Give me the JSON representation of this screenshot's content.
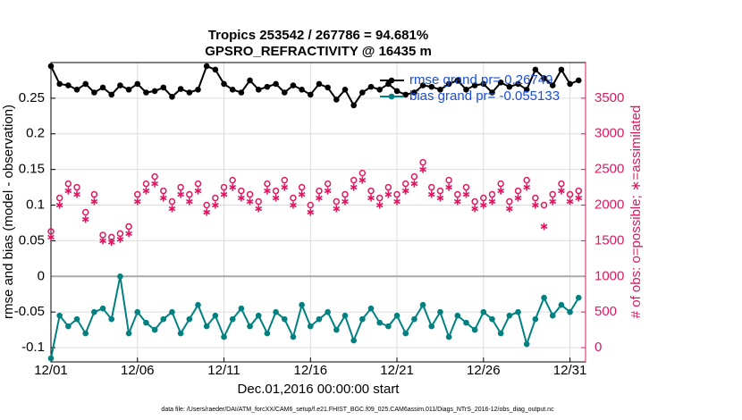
{
  "chart_data": {
    "type": "line",
    "title": "Tropics 253542 / 267786 = 94.681%",
    "subtitle": "GPSRO_REFRACTIVITY @ 16435 m",
    "xlabel": "Dec.01,2016 00:00:00 start",
    "ylabel": "rmse and bias (model - observation)",
    "y2label": "# of obs: o=possible; ∗=assimilated",
    "footnote": "data file: /Users/raeder/DAI/ATM_forcXX/CAM6_setup/f.e21.FHIST_BGC.f09_025.CAM6assim.011/Diags_NTrS_2016-12/obs_diag_output.nc",
    "x": [
      1,
      1.5,
      2,
      2.5,
      3,
      3.5,
      4,
      4.5,
      5,
      5.5,
      6,
      6.5,
      7,
      7.5,
      8,
      8.5,
      9,
      9.5,
      10,
      10.5,
      11,
      11.5,
      12,
      12.5,
      13,
      13.5,
      14,
      14.5,
      15,
      15.5,
      16,
      16.5,
      17,
      17.5,
      18,
      18.5,
      19,
      19.5,
      20,
      20.5,
      21,
      21.5,
      22,
      22.5,
      23,
      23.5,
      24,
      24.5,
      25,
      25.5,
      26,
      26.5,
      27,
      27.5,
      28,
      28.5,
      29,
      29.5,
      30,
      30.5,
      31,
      31.5
    ],
    "xlim": [
      1,
      31.9
    ],
    "xticks": [
      {
        "value": 1,
        "label": "12/01"
      },
      {
        "value": 6,
        "label": "12/06"
      },
      {
        "value": 11,
        "label": "12/11"
      },
      {
        "value": 16,
        "label": "12/16"
      },
      {
        "value": 21,
        "label": "12/21"
      },
      {
        "value": 26,
        "label": "12/26"
      },
      {
        "value": 31,
        "label": "12/31"
      }
    ],
    "ylim": [
      -0.12,
      0.3
    ],
    "yticks": [
      -0.1,
      -0.05,
      0,
      0.05,
      0.1,
      0.15,
      0.2,
      0.25
    ],
    "y2lim": [
      -200,
      4000
    ],
    "y2ticks": [
      0,
      500,
      1000,
      1500,
      2000,
      2500,
      3000,
      3500
    ],
    "grid": true,
    "series": [
      {
        "name": "rmse grand pr= 0.26749",
        "color": "#000000",
        "marker": "dot",
        "values": [
          0.295,
          0.27,
          0.268,
          0.262,
          0.27,
          0.258,
          0.265,
          0.255,
          0.268,
          0.262,
          0.27,
          0.258,
          0.26,
          0.265,
          0.252,
          0.263,
          0.258,
          0.262,
          0.295,
          0.29,
          0.27,
          0.262,
          0.258,
          0.275,
          0.262,
          0.266,
          0.27,
          0.258,
          0.268,
          0.262,
          0.255,
          0.27,
          0.265,
          0.248,
          0.262,
          0.24,
          0.258,
          0.266,
          0.262,
          0.27,
          0.26,
          0.255,
          0.258,
          0.268,
          0.266,
          0.262,
          0.27,
          0.275,
          0.262,
          0.268,
          0.27,
          0.258,
          0.272,
          0.266,
          0.27,
          0.262,
          0.29,
          0.278,
          0.268,
          0.29,
          0.27,
          0.275
        ]
      },
      {
        "name": "bias grand pr= -0.055133",
        "color": "#008080",
        "marker": "dot",
        "values": [
          -0.115,
          -0.055,
          -0.07,
          -0.06,
          -0.08,
          -0.05,
          -0.045,
          -0.06,
          0,
          -0.08,
          -0.05,
          -0.065,
          -0.075,
          -0.06,
          -0.05,
          -0.08,
          -0.06,
          -0.04,
          -0.07,
          -0.055,
          -0.085,
          -0.06,
          -0.045,
          -0.07,
          -0.055,
          -0.08,
          -0.05,
          -0.06,
          -0.085,
          -0.04,
          -0.07,
          -0.06,
          -0.05,
          -0.075,
          -0.055,
          -0.09,
          -0.06,
          -0.045,
          -0.065,
          -0.07,
          -0.055,
          -0.08,
          -0.06,
          -0.04,
          -0.07,
          -0.05,
          -0.085,
          -0.055,
          -0.065,
          -0.075,
          -0.05,
          -0.06,
          -0.08,
          -0.055,
          -0.05,
          -0.095,
          -0.06,
          -0.03,
          -0.055,
          -0.04,
          -0.05,
          -0.03
        ]
      },
      {
        "axis": "y2",
        "color": "#d81b60",
        "marker": "circle",
        "values": [
          1630,
          2100,
          2300,
          2250,
          1900,
          2150,
          1580,
          1550,
          1600,
          1700,
          2150,
          2300,
          2400,
          2200,
          2050,
          2250,
          2150,
          2300,
          2000,
          2100,
          2250,
          2350,
          2200,
          2150,
          2050,
          2300,
          2200,
          2350,
          2100,
          2250,
          2000,
          2200,
          2300,
          2050,
          2150,
          2350,
          2450,
          2200,
          2100,
          2250,
          2150,
          2300,
          2400,
          2600,
          2250,
          2200,
          2350,
          2150,
          2250,
          2050,
          2100,
          2150,
          2300,
          2050,
          2200,
          2350,
          2100,
          2000,
          2150,
          2300,
          2150,
          2200
        ]
      },
      {
        "axis": "y2",
        "color": "#d81b60",
        "marker": "star",
        "values": [
          1550,
          2000,
          2200,
          2150,
          1800,
          2050,
          1500,
          1480,
          1520,
          1600,
          2050,
          2200,
          2300,
          2100,
          1950,
          2150,
          2050,
          2200,
          1900,
          2000,
          2150,
          2250,
          2100,
          2050,
          1950,
          2200,
          2100,
          2250,
          2000,
          2150,
          1900,
          2100,
          2200,
          1950,
          2050,
          2250,
          2350,
          2100,
          2000,
          2150,
          2050,
          2200,
          2300,
          2500,
          2150,
          2100,
          2250,
          2050,
          2150,
          1950,
          2000,
          2050,
          2200,
          1950,
          2100,
          2250,
          2000,
          1700,
          2050,
          2200,
          2050,
          2100
        ]
      }
    ]
  }
}
